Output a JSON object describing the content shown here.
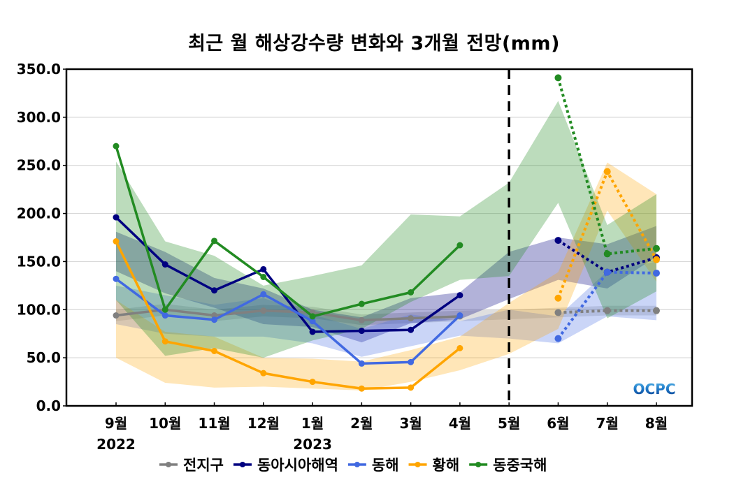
{
  "chart_data": {
    "type": "line",
    "title": "최근 월 해상강수량 변화와 3개월 전망(mm)",
    "xlabel": "",
    "ylabel": "",
    "ylim": [
      0,
      350
    ],
    "yticks": [
      "0.0",
      "50.0",
      "100.0",
      "150.0",
      "200.0",
      "250.0",
      "300.0",
      "350.0"
    ],
    "ytick_values": [
      0,
      50,
      100,
      150,
      200,
      250,
      300,
      350
    ],
    "grid": true,
    "categories": [
      "9월",
      "10월",
      "11월",
      "12월",
      "1월",
      "2월",
      "3월",
      "4월",
      "5월",
      "6월",
      "7월",
      "8월"
    ],
    "year_labels": [
      {
        "category_index": 0,
        "label": "2022"
      },
      {
        "category_index": 4,
        "label": "2023"
      }
    ],
    "divider": {
      "category": "5월",
      "style": "dashed",
      "meaning": "observed vs forecast"
    },
    "observed_range": [
      "9월",
      "4월"
    ],
    "forecast_range": [
      "6월",
      "8월"
    ],
    "legend_position": "bottom-center",
    "series": [
      {
        "name": "전지구",
        "color": "#808080",
        "observed": [
          94,
          100,
          94,
          99,
          97,
          89,
          91,
          93,
          null,
          null,
          null,
          null
        ],
        "forecast": [
          null,
          null,
          null,
          null,
          null,
          null,
          null,
          null,
          null,
          97,
          99,
          99
        ],
        "band_lower": [
          88,
          94,
          88,
          93,
          91,
          84,
          86,
          88,
          90,
          92,
          94,
          94
        ],
        "band_upper": [
          100,
          106,
          100,
          105,
          103,
          95,
          97,
          99,
          100,
          102,
          104,
          104
        ]
      },
      {
        "name": "동아시아해역",
        "color": "#000080",
        "observed": [
          196,
          147,
          120,
          142,
          77,
          78,
          79,
          115,
          null,
          null,
          null,
          null
        ],
        "forecast": [
          null,
          null,
          null,
          null,
          null,
          null,
          null,
          null,
          null,
          172,
          139,
          154
        ],
        "band_lower": [
          140,
          117,
          102,
          85,
          82,
          66,
          86,
          90,
          111,
          131,
          122,
          155
        ],
        "band_upper": [
          181,
          160,
          133,
          122,
          100,
          92,
          112,
          118,
          160,
          175,
          168,
          187
        ]
      },
      {
        "name": "동해",
        "color": "#4169E1",
        "observed": [
          132,
          94,
          89.5,
          116,
          88,
          44,
          45.5,
          94,
          null,
          null,
          null,
          null
        ],
        "forecast": [
          null,
          null,
          null,
          null,
          null,
          null,
          null,
          null,
          null,
          70,
          139,
          138
        ],
        "band_lower": [
          85,
          75,
          72,
          72,
          65,
          51,
          62,
          73,
          70,
          65,
          93,
          89
        ],
        "band_upper": [
          125,
          115,
          105,
          112,
          95,
          80,
          95,
          88,
          100,
          93,
          140,
          150
        ]
      },
      {
        "name": "황해",
        "color": "#FFA500",
        "observed": [
          171,
          67,
          57,
          34,
          25,
          18,
          19,
          60,
          null,
          null,
          null,
          null
        ],
        "forecast": [
          null,
          null,
          null,
          null,
          null,
          null,
          null,
          null,
          null,
          112,
          243.5,
          152
        ],
        "band_lower": [
          50,
          24,
          19,
          20,
          18,
          16,
          25,
          37,
          54,
          80,
          203,
          129
        ],
        "band_upper": [
          110,
          77,
          72,
          50,
          49,
          46,
          58,
          72,
          107,
          139,
          253,
          220
        ]
      },
      {
        "name": "동중국해",
        "color": "#228B22",
        "observed": [
          270,
          100,
          171.5,
          134,
          93,
          106,
          118,
          167,
          null,
          null,
          null,
          null
        ],
        "forecast": [
          null,
          null,
          null,
          null,
          null,
          null,
          null,
          null,
          null,
          341,
          158,
          163.6
        ],
        "band_lower": [
          110,
          52,
          60,
          50,
          68,
          80,
          108,
          131,
          135,
          211,
          91,
          119
        ],
        "band_upper": [
          254,
          171,
          156,
          125,
          135,
          146,
          199,
          197,
          232,
          317,
          188,
          220
        ]
      }
    ]
  },
  "logo": {
    "text": "OCPC"
  }
}
